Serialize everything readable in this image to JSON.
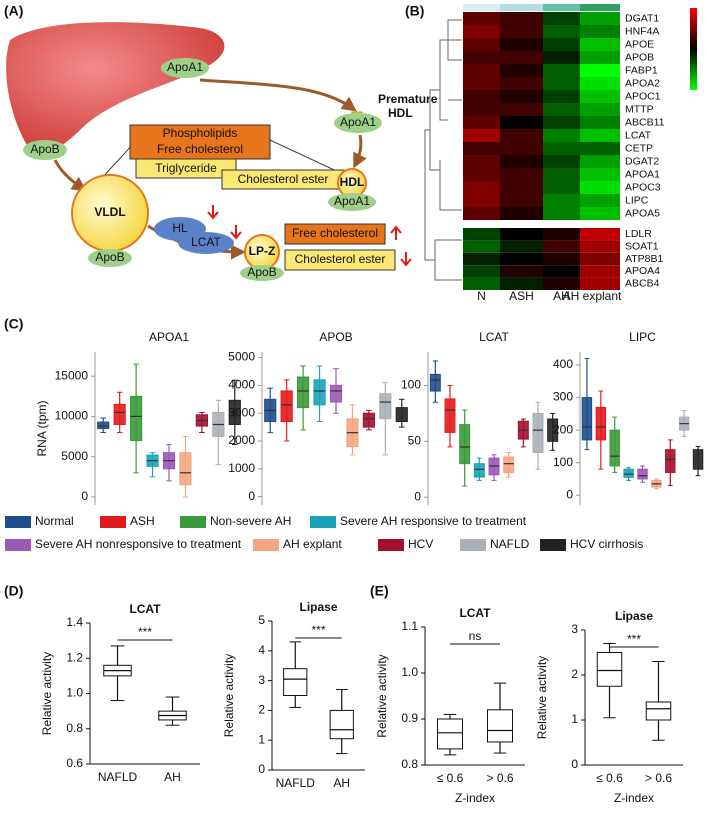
{
  "panel_labels": [
    "(A)",
    "(B)",
    "(C)",
    "(D)",
    "(E)"
  ],
  "panel_a": {
    "apoa1": "ApoA1",
    "apob": "ApoB",
    "premature": "Premature",
    "hdl_label": "HDL",
    "phospholipids": "Phospholipids",
    "free_cholesterol": "Free cholesterol",
    "triglyceride": "Triglyceride",
    "cholesterol_ester": "Cholesterol ester",
    "hdl": "HDL",
    "vldl": "VLDL",
    "hl": "HL",
    "lcat": "LCAT",
    "lpz": "LP-Z"
  },
  "panel_b": {
    "genes": [
      "DGAT1",
      "HNF4A",
      "APOE",
      "APOB",
      "FABP1",
      "APOA2",
      "APOC1",
      "MTTP",
      "ABCB11",
      "LCAT",
      "CETP",
      "DGAT2",
      "APOA1",
      "APOC3",
      "LIPC",
      "APOA5",
      "LDLR",
      "SOAT1",
      "ATP8B1",
      "APOA4",
      "ABCB4"
    ],
    "groups": [
      "N",
      "ASH",
      "AH",
      "AH explant"
    ],
    "group_colors": [
      "#d8eef0",
      "#b3dfe0",
      "#66c2a4",
      "#2ca25f"
    ],
    "values": [
      [
        0.3,
        0.2,
        -0.2,
        -0.5
      ],
      [
        0.4,
        0.2,
        -0.3,
        -0.4
      ],
      [
        0.3,
        0.1,
        -0.2,
        -0.6
      ],
      [
        0.2,
        0.2,
        -0.1,
        -0.5
      ],
      [
        0.3,
        0.1,
        -0.3,
        -0.8
      ],
      [
        0.3,
        0.2,
        -0.3,
        -0.7
      ],
      [
        0.2,
        0.1,
        -0.2,
        -0.6
      ],
      [
        0.2,
        0.2,
        -0.3,
        -0.5
      ],
      [
        0.3,
        0,
        -0.2,
        -0.4
      ],
      [
        0.5,
        0.2,
        -0.4,
        -0.6
      ],
      [
        0.2,
        0.2,
        -0.3,
        -0.3
      ],
      [
        0.3,
        0.1,
        -0.2,
        -0.5
      ],
      [
        0.3,
        0.2,
        -0.3,
        -0.6
      ],
      [
        0.4,
        0.2,
        -0.3,
        -0.7
      ],
      [
        0.4,
        0.2,
        -0.4,
        -0.5
      ],
      [
        0.3,
        0.1,
        -0.4,
        -0.6
      ],
      [
        -0.2,
        0,
        0.1,
        0.6
      ],
      [
        -0.3,
        -0.1,
        0.2,
        0.5
      ],
      [
        -0.1,
        0,
        0.1,
        0.4
      ],
      [
        -0.2,
        0.1,
        0,
        0.5
      ],
      [
        -0.3,
        -0.1,
        0.1,
        0.5
      ]
    ]
  },
  "legend": {
    "names": [
      "Normal",
      "ASH",
      "Non-severe AH",
      "Severe AH responsive to treatment",
      "Severe AH nonresponsive to treatment",
      "AH explant",
      "HCV",
      "NAFLD",
      "HCV cirrhosis"
    ],
    "colors": [
      "#1f4e8c",
      "#e31a1c",
      "#3a9a3a",
      "#1aa3b8",
      "#9b59b6",
      "#f4a582",
      "#a50f2d",
      "#aab0b5",
      "#222222"
    ]
  },
  "chart_data": [
    {
      "type": "box",
      "title": "APOA1",
      "ylabel": "RNA (tpm)",
      "ylim": [
        -1000,
        18000
      ],
      "yticks": [
        0,
        5000,
        10000,
        15000
      ],
      "values": [
        [
          8000,
          8500,
          8800,
          9300,
          9800
        ],
        [
          8000,
          9000,
          10500,
          11500,
          13000
        ],
        [
          3000,
          7000,
          10000,
          12500,
          16500
        ],
        [
          2500,
          3800,
          4500,
          5200,
          5500
        ],
        [
          2000,
          3500,
          4500,
          5500,
          6500
        ],
        [
          0,
          1500,
          3000,
          5500,
          7500
        ],
        [
          8000,
          8800,
          9500,
          10200,
          10500
        ],
        [
          4000,
          7500,
          9000,
          10500,
          12000
        ],
        [
          6500,
          9000,
          10500,
          12000,
          14500
        ]
      ]
    },
    {
      "type": "box",
      "title": "APOB",
      "ylim": [
        -300,
        5200
      ],
      "yticks": [
        0,
        1000,
        2000,
        3000,
        4000,
        5000
      ],
      "values": [
        [
          2300,
          2700,
          3100,
          3500,
          3900
        ],
        [
          2000,
          2700,
          3300,
          3800,
          4200
        ],
        [
          2400,
          3200,
          3800,
          4300,
          4700
        ],
        [
          2700,
          3300,
          3800,
          4200,
          4700
        ],
        [
          3000,
          3400,
          3800,
          4000,
          4600
        ],
        [
          1500,
          1800,
          2300,
          2800,
          3300
        ],
        [
          2400,
          2500,
          2800,
          3000,
          3100
        ],
        [
          1500,
          2800,
          3400,
          3700,
          4100
        ],
        [
          2500,
          2700,
          3000,
          3200,
          3500
        ]
      ]
    },
    {
      "type": "box",
      "title": "LCAT",
      "ylim": [
        -7,
        130
      ],
      "yticks": [
        0,
        50,
        100
      ],
      "values": [
        [
          85,
          95,
          105,
          110,
          122
        ],
        [
          45,
          58,
          78,
          88,
          100
        ],
        [
          10,
          30,
          45,
          65,
          78
        ],
        [
          15,
          18,
          25,
          30,
          35
        ],
        [
          15,
          20,
          28,
          35,
          38
        ],
        [
          18,
          22,
          30,
          36,
          40
        ],
        [
          45,
          52,
          60,
          68,
          70
        ],
        [
          25,
          40,
          60,
          75,
          85
        ],
        [
          42,
          50,
          60,
          70,
          75
        ]
      ]
    },
    {
      "type": "box",
      "title": "LIPC",
      "ylim": [
        -30,
        440
      ],
      "yticks": [
        0,
        100,
        200,
        300,
        400
      ],
      "values": [
        [
          140,
          170,
          210,
          300,
          420
        ],
        [
          80,
          170,
          210,
          270,
          320
        ],
        [
          70,
          90,
          120,
          200,
          240
        ],
        [
          45,
          55,
          65,
          80,
          85
        ],
        [
          40,
          50,
          60,
          80,
          90
        ],
        [
          20,
          25,
          35,
          45,
          50
        ],
        [
          30,
          70,
          110,
          140,
          170
        ],
        [
          180,
          200,
          220,
          240,
          260
        ],
        [
          60,
          80,
          110,
          140,
          150
        ]
      ]
    },
    {
      "type": "box",
      "title": "LCAT",
      "ylabel": "Relative activity",
      "categories": [
        "NAFLD",
        "AH"
      ],
      "annotation": "***",
      "ylim": [
        0.6,
        1.4
      ],
      "yticks": [
        0.6,
        0.8,
        {
          "value": 1,
          "label": "1.0"
        },
        1.2,
        1.4
      ],
      "values": [
        [
          0.96,
          1.1,
          1.13,
          1.16,
          1.27
        ],
        [
          0.82,
          0.85,
          0.875,
          0.9,
          0.98
        ]
      ]
    },
    {
      "type": "box",
      "title": "Lipase",
      "ylabel": "Relative activity",
      "categories": [
        "NAFLD",
        "AH"
      ],
      "annotation": "***",
      "ylim": [
        0,
        5
      ],
      "yticks": [
        0,
        1,
        2,
        3,
        4,
        5
      ],
      "values": [
        [
          2.1,
          2.5,
          3.05,
          3.4,
          4.3
        ],
        [
          0.55,
          1.05,
          1.35,
          2.0,
          2.7
        ]
      ]
    },
    {
      "type": "box",
      "title": "LCAT",
      "ylabel": "Relative activity",
      "xlabel": "Z-index",
      "categories": [
        "≤ 0.6",
        "> 0.6"
      ],
      "annotation": "ns",
      "ylim": [
        0.8,
        1.1
      ],
      "yticks": [
        0.8,
        0.9,
        {
          "value": 1,
          "label": "1.0"
        },
        1.1
      ],
      "values": [
        [
          0.822,
          0.835,
          0.87,
          0.9,
          0.91
        ],
        [
          0.826,
          0.85,
          0.875,
          0.92,
          0.978
        ]
      ]
    },
    {
      "type": "box",
      "title": "Lipase",
      "ylabel": "Relative activity",
      "xlabel": "Z-index",
      "categories": [
        "≤ 0.6",
        "> 0.6"
      ],
      "annotation": "***",
      "ylim": [
        0,
        3
      ],
      "yticks": [
        0,
        1,
        2,
        3
      ],
      "values": [
        [
          1.05,
          1.75,
          2.1,
          2.5,
          2.7
        ],
        [
          0.55,
          1.0,
          1.25,
          1.4,
          2.3
        ]
      ]
    }
  ]
}
